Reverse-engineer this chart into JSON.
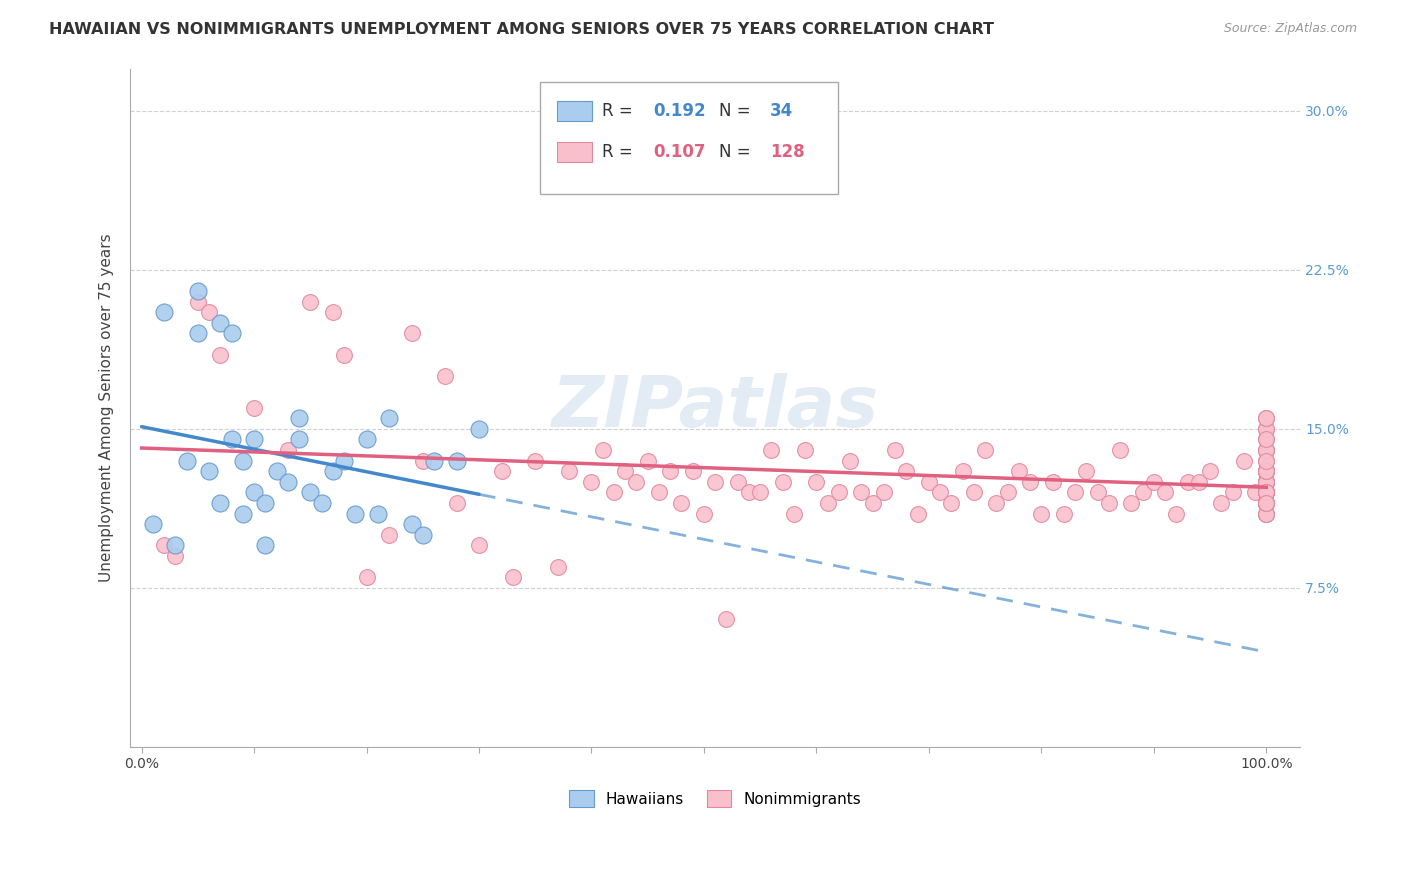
{
  "title": "HAWAIIAN VS NONIMMIGRANTS UNEMPLOYMENT AMONG SENIORS OVER 75 YEARS CORRELATION CHART",
  "source": "Source: ZipAtlas.com",
  "ylabel": "Unemployment Among Seniors over 75 years",
  "background_color": "#ffffff",
  "grid_color": "#d0d0d0",
  "hawaiians_R": "0.192",
  "hawaiians_N": "34",
  "nonimmigrants_R": "0.107",
  "nonimmigrants_N": "128",
  "hawaiians_color": "#aaccee",
  "hawaiians_line_color": "#4488cc",
  "hawaiians_edge_color": "#6699cc",
  "nonimmigrants_color": "#f9c0cc",
  "nonimmigrants_line_color": "#e06080",
  "nonimmigrants_edge_color": "#e088a0",
  "ylim": [
    0,
    32
  ],
  "xlim": [
    -1,
    103
  ],
  "ytick_values": [
    7.5,
    15.0,
    22.5,
    30.0
  ],
  "hawaiians_x": [
    1,
    2,
    3,
    4,
    5,
    5,
    6,
    7,
    7,
    8,
    8,
    9,
    9,
    10,
    10,
    11,
    11,
    12,
    13,
    14,
    14,
    15,
    16,
    17,
    18,
    19,
    20,
    21,
    22,
    24,
    25,
    26,
    28,
    30
  ],
  "hawaiians_y": [
    10.5,
    20.5,
    9.5,
    13.5,
    21.5,
    19.5,
    13.0,
    11.5,
    20.0,
    19.5,
    14.5,
    13.5,
    11.0,
    12.0,
    14.5,
    11.5,
    9.5,
    13.0,
    12.5,
    14.5,
    15.5,
    12.0,
    11.5,
    13.0,
    13.5,
    11.0,
    14.5,
    11.0,
    15.5,
    10.5,
    10.0,
    13.5,
    13.5,
    15.0
  ],
  "nonimmigrants_x": [
    2,
    3,
    5,
    6,
    7,
    10,
    13,
    15,
    17,
    18,
    20,
    22,
    24,
    25,
    27,
    28,
    30,
    32,
    33,
    35,
    37,
    38,
    40,
    41,
    42,
    43,
    44,
    45,
    46,
    47,
    48,
    49,
    50,
    51,
    52,
    53,
    54,
    55,
    56,
    57,
    58,
    59,
    60,
    61,
    62,
    63,
    64,
    65,
    66,
    67,
    68,
    69,
    70,
    71,
    72,
    73,
    74,
    75,
    76,
    77,
    78,
    79,
    80,
    81,
    82,
    83,
    84,
    85,
    86,
    87,
    88,
    89,
    90,
    91,
    92,
    93,
    94,
    95,
    96,
    97,
    98,
    99,
    100,
    100,
    100,
    100,
    100,
    100,
    100,
    100,
    100,
    100,
    100,
    100,
    100,
    100,
    100,
    100,
    100,
    100,
    100,
    100,
    100,
    100,
    100,
    100,
    100,
    100,
    100,
    100,
    100,
    100,
    100,
    100,
    100,
    100,
    100,
    100,
    100,
    100,
    100,
    100,
    100,
    100,
    100,
    100,
    100,
    100
  ],
  "nonimmigrants_y": [
    9.5,
    9.0,
    21.0,
    20.5,
    18.5,
    16.0,
    14.0,
    21.0,
    20.5,
    18.5,
    8.0,
    10.0,
    19.5,
    13.5,
    17.5,
    11.5,
    9.5,
    13.0,
    8.0,
    13.5,
    8.5,
    13.0,
    12.5,
    14.0,
    12.0,
    13.0,
    12.5,
    13.5,
    12.0,
    13.0,
    11.5,
    13.0,
    11.0,
    12.5,
    6.0,
    12.5,
    12.0,
    12.0,
    14.0,
    12.5,
    11.0,
    14.0,
    12.5,
    11.5,
    12.0,
    13.5,
    12.0,
    11.5,
    12.0,
    14.0,
    13.0,
    11.0,
    12.5,
    12.0,
    11.5,
    13.0,
    12.0,
    14.0,
    11.5,
    12.0,
    13.0,
    12.5,
    11.0,
    12.5,
    11.0,
    12.0,
    13.0,
    12.0,
    11.5,
    14.0,
    11.5,
    12.0,
    12.5,
    12.0,
    11.0,
    12.5,
    12.5,
    13.0,
    11.5,
    12.0,
    13.5,
    12.0,
    11.5,
    13.0,
    14.5,
    12.0,
    11.0,
    15.0,
    12.5,
    13.0,
    12.5,
    11.0,
    12.5,
    14.0,
    13.0,
    12.5,
    11.5,
    13.5,
    12.0,
    11.5,
    12.5,
    13.0,
    12.0,
    11.5,
    12.5,
    11.5,
    14.0,
    12.5,
    12.5,
    15.0,
    13.0,
    12.0,
    11.5,
    12.0,
    14.0,
    13.0,
    12.5,
    11.0,
    15.5,
    12.0,
    11.5,
    13.0,
    14.5,
    15.5,
    13.0,
    12.0,
    11.5,
    13.5
  ]
}
